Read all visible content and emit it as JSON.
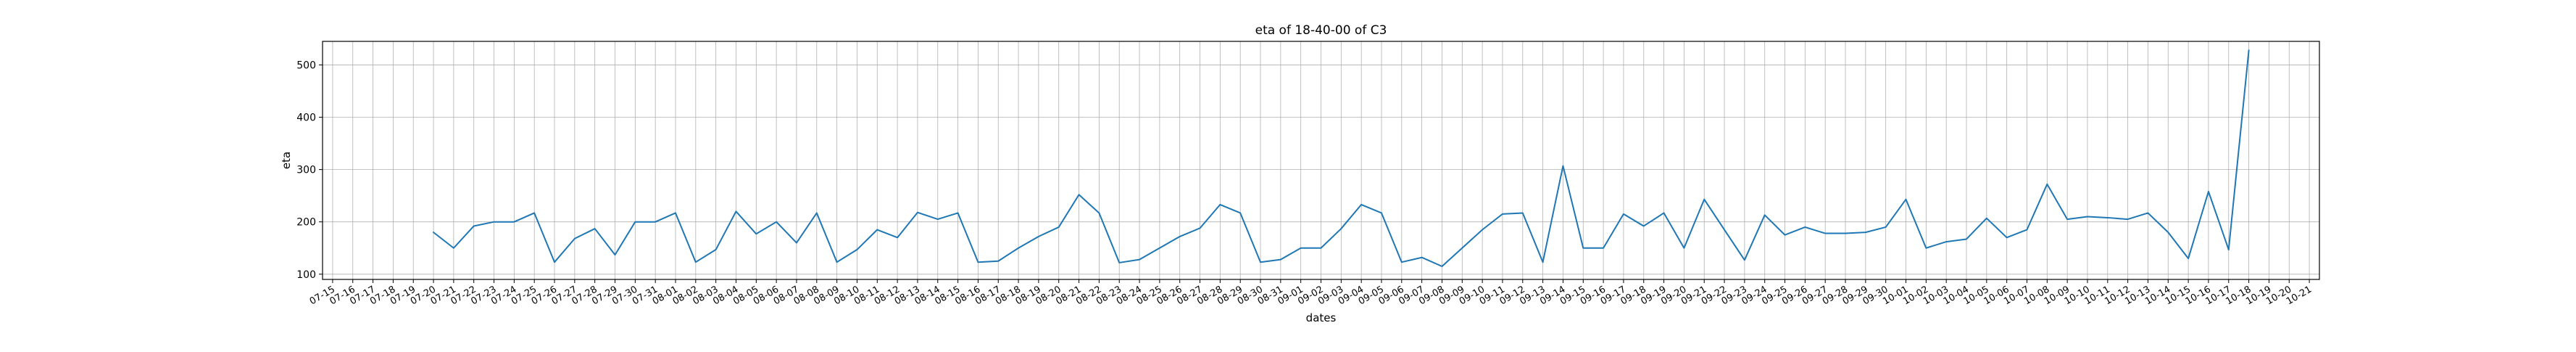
{
  "chart_data": {
    "type": "line",
    "title": "eta of 18-40-00 of C3",
    "xlabel": "dates",
    "ylabel": "eta",
    "x_ticks": [
      "07-15",
      "07-16",
      "07-17",
      "07-18",
      "07-19",
      "07-20",
      "07-21",
      "07-22",
      "07-23",
      "07-24",
      "07-25",
      "07-26",
      "07-27",
      "07-28",
      "07-29",
      "07-30",
      "07-31",
      "08-01",
      "08-02",
      "08-03",
      "08-04",
      "08-05",
      "08-06",
      "08-07",
      "08-08",
      "08-09",
      "08-10",
      "08-11",
      "08-12",
      "08-13",
      "08-14",
      "08-15",
      "08-16",
      "08-17",
      "08-18",
      "08-19",
      "08-20",
      "08-21",
      "08-22",
      "08-23",
      "08-24",
      "08-25",
      "08-26",
      "08-27",
      "08-28",
      "08-29",
      "08-30",
      "08-31",
      "09-01",
      "09-02",
      "09-03",
      "09-04",
      "09-05",
      "09-06",
      "09-07",
      "09-08",
      "09-09",
      "09-10",
      "09-11",
      "09-12",
      "09-13",
      "09-14",
      "09-15",
      "09-16",
      "09-17",
      "09-18",
      "09-19",
      "09-20",
      "09-21",
      "09-22",
      "09-23",
      "09-24",
      "09-25",
      "09-26",
      "09-27",
      "09-28",
      "09-29",
      "09-30",
      "10-01",
      "10-02",
      "10-03",
      "10-04",
      "10-05",
      "10-06",
      "10-07",
      "10-08",
      "10-09",
      "10-10",
      "10-11",
      "10-12",
      "10-13",
      "10-14",
      "10-15",
      "10-16",
      "10-17",
      "10-18",
      "10-19",
      "10-20",
      "10-21"
    ],
    "y_ticks": [
      100,
      200,
      300,
      400,
      500
    ],
    "ylim": [
      90,
      545
    ],
    "grid": true,
    "series": [
      {
        "color": "#1f77b4",
        "x": [
          "07-20",
          "07-21",
          "07-22",
          "07-23",
          "07-24",
          "07-25",
          "07-26",
          "07-27",
          "07-28",
          "07-29",
          "07-30",
          "07-31",
          "08-01",
          "08-02",
          "08-03",
          "08-04",
          "08-05",
          "08-06",
          "08-07",
          "08-08",
          "08-09",
          "08-10",
          "08-11",
          "08-12",
          "08-13",
          "08-14",
          "08-15",
          "08-16",
          "08-17",
          "08-18",
          "08-19",
          "08-20",
          "08-21",
          "08-22",
          "08-23",
          "08-24",
          "08-25",
          "08-26",
          "08-27",
          "08-28",
          "08-29",
          "08-30",
          "08-31",
          "09-01",
          "09-02",
          "09-03",
          "09-04",
          "09-05",
          "09-06",
          "09-07",
          "09-08",
          "09-09",
          "09-10",
          "09-11",
          "09-12",
          "09-13",
          "09-14",
          "09-15",
          "09-16",
          "09-17",
          "09-18",
          "09-19",
          "09-20",
          "09-21",
          "09-22",
          "09-23",
          "09-24",
          "09-25",
          "09-26",
          "09-27",
          "09-28",
          "09-29",
          "09-30",
          "10-01",
          "10-02",
          "10-03",
          "10-04",
          "10-05",
          "10-06",
          "10-07",
          "10-08",
          "10-09",
          "10-10",
          "10-11",
          "10-12",
          "10-13",
          "10-14",
          "10-15",
          "10-16",
          "10-17"
        ],
        "values": [
          180,
          150,
          192,
          200,
          200,
          217,
          123,
          168,
          187,
          137,
          200,
          200,
          217,
          123,
          147,
          220,
          177,
          200,
          160,
          217,
          123,
          147,
          185,
          170,
          218,
          205,
          217,
          123,
          125,
          150,
          172,
          190,
          252,
          217,
          122,
          128,
          150,
          172,
          188,
          233,
          217,
          123,
          128,
          150,
          150,
          187,
          233,
          217,
          123,
          132,
          115,
          150,
          185,
          215,
          217,
          123,
          307,
          150,
          150,
          215,
          192,
          217,
          150,
          243,
          185,
          127,
          213,
          175,
          190,
          178,
          178,
          180,
          190,
          243,
          150,
          162,
          167,
          207,
          170,
          185,
          272,
          205,
          210,
          208,
          205,
          217,
          180,
          130,
          258,
          147
        ]
      },
      {
        "color": "#1f77b4",
        "x": [
          "10-17",
          "10-18"
        ],
        "values": [
          147,
          528
        ]
      }
    ]
  }
}
